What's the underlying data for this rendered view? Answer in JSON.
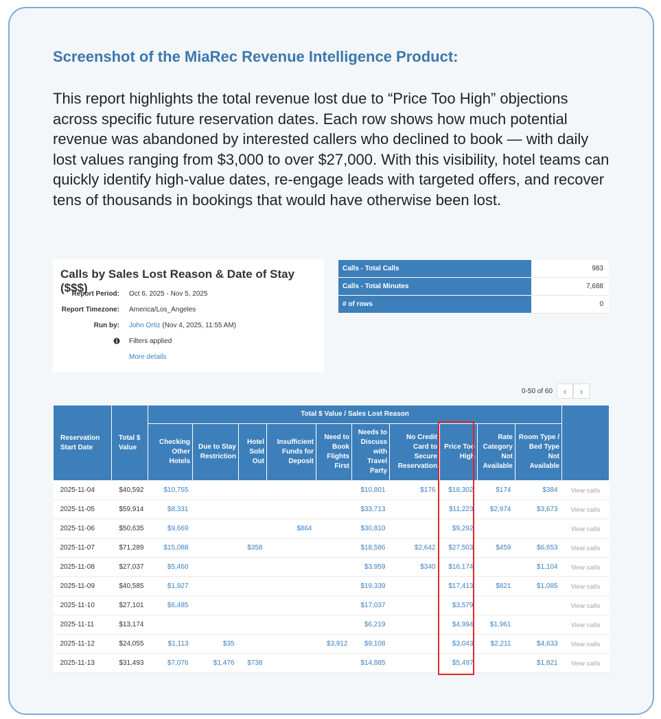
{
  "heading": "Screenshot of the MiaRec Revenue Intelligence Product:",
  "description": "This report highlights the total revenue lost due to “Price Too High” objections across specific future reservation dates. Each row shows how much potential revenue was abandoned by interested callers who declined to book — with daily lost values ranging from $3,000 to over $27,000. With this visibility, hotel teams can quickly identify high-value dates, re-engage leads with targeted offers, and recover tens of thousands in bookings that would have otherwise been lost.",
  "report": {
    "title": "Calls by Sales Lost Reason & Date of Stay ($$$)",
    "fields": [
      {
        "label": "Report Period:",
        "value": "Oct 6, 2025 - Nov 5, 2025"
      },
      {
        "label": "Report Timezone:",
        "value": "America/Los_Angeles"
      }
    ],
    "run_by": {
      "label": "Run by:",
      "link": "John Ortiz",
      "value": "(Nov 4, 2025, 11:55 AM)"
    },
    "filters": "Filters applied",
    "more": "More details"
  },
  "summary": [
    {
      "label": "Calls - Total Calls",
      "value": "983"
    },
    {
      "label": "Calls - Total Minutes",
      "value": "7,688"
    },
    {
      "label": "# of rows",
      "value": "0"
    }
  ],
  "pagination": "0-50 of 60",
  "table": {
    "group_header": "Total $ Value / Sales Lost Reason",
    "fixed_columns": [
      "Reservation Start Date",
      "Total $ Value"
    ],
    "columns": [
      "Checking Other Hotels",
      "Due to Stay Restriction",
      "Hotel Sold Out",
      "Insufficient Funds for Deposit",
      "Need to Book Flights First",
      "Needs to Discuss with Travel Party",
      "No Credit Card to Secure Reservation",
      "Price Too High",
      "Rate Category Not Available",
      "Room Type / Bed Type Not Available"
    ],
    "action": "View calls",
    "rows": [
      [
        "2025-11-04",
        "$40,592",
        "$10,755",
        null,
        null,
        null,
        null,
        "$10,801",
        "$176",
        "$18,302",
        "$174",
        "$384"
      ],
      [
        "2025-11-05",
        "$59,914",
        "$8,331",
        null,
        null,
        null,
        null,
        "$33,713",
        null,
        "$11,223",
        "$2,974",
        "$3,673"
      ],
      [
        "2025-11-06",
        "$50,635",
        "$9,669",
        null,
        null,
        "$864",
        null,
        "$30,810",
        null,
        "$9,292",
        null,
        null
      ],
      [
        "2025-11-07",
        "$71,289",
        "$15,088",
        null,
        "$358",
        null,
        null,
        "$18,586",
        "$2,642",
        "$27,503",
        "$459",
        "$6,653"
      ],
      [
        "2025-11-08",
        "$27,037",
        "$5,460",
        null,
        null,
        null,
        null,
        "$3,959",
        "$340",
        "$16,174",
        null,
        "$1,104"
      ],
      [
        "2025-11-09",
        "$40,585",
        "$1,927",
        null,
        null,
        null,
        null,
        "$19,339",
        null,
        "$17,413",
        "$821",
        "$1,085"
      ],
      [
        "2025-11-10",
        "$27,101",
        "$6,485",
        null,
        null,
        null,
        null,
        "$17,037",
        null,
        "$3,579",
        null,
        null
      ],
      [
        "2025-11-11",
        "$13,174",
        null,
        null,
        null,
        null,
        null,
        "$6,219",
        null,
        "$4,994",
        "$1,961",
        null
      ],
      [
        "2025-11-12",
        "$24,055",
        "$1,113",
        "$35",
        null,
        null,
        "$3,912",
        "$9,108",
        null,
        "$3,043",
        "$2,211",
        "$4,633"
      ],
      [
        "2025-11-13",
        "$31,493",
        "$7,076",
        "$1,476",
        "$738",
        null,
        null,
        "$14,885",
        null,
        "$5,497",
        null,
        "$1,821"
      ]
    ]
  }
}
